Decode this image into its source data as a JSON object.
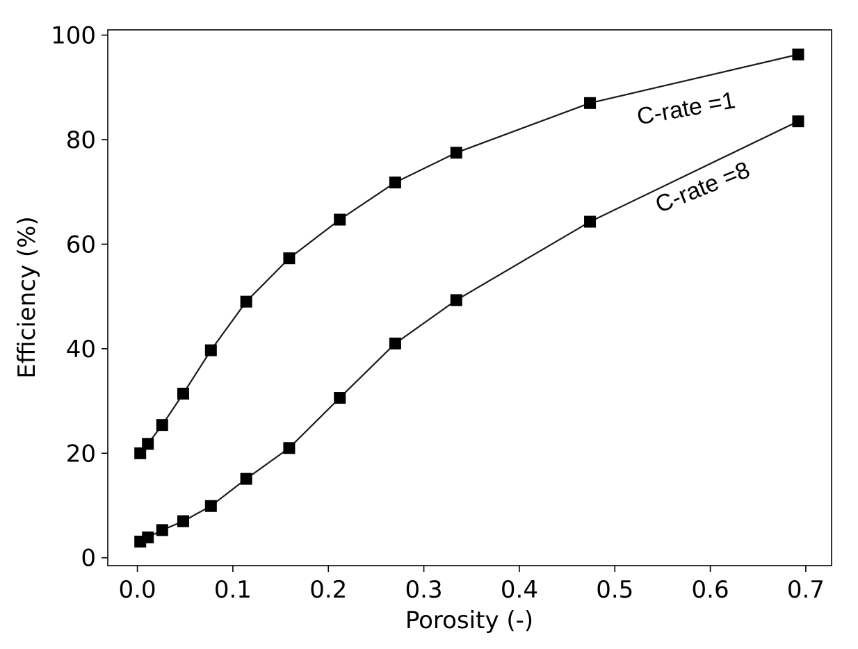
{
  "chart_data": {
    "type": "line",
    "title": "",
    "xlabel": "Porosity (-)",
    "ylabel": "Efficiency (%)",
    "xlim": [
      -0.031,
      0.727
    ],
    "ylim": [
      -1.5,
      101
    ],
    "xticks": [
      0.0,
      0.1,
      0.2,
      0.3,
      0.4,
      0.5,
      0.6,
      0.7
    ],
    "xtick_labels": [
      "0.0",
      "0.1",
      "0.2",
      "0.3",
      "0.4",
      "0.5",
      "0.6",
      "0.7"
    ],
    "yticks": [
      0,
      20,
      40,
      60,
      80,
      100
    ],
    "ytick_labels": [
      "0",
      "20",
      "40",
      "60",
      "80",
      "100"
    ],
    "grid": false,
    "legend": "none",
    "marker": "square",
    "line_color": "#1a1a1a",
    "marker_color": "#000000",
    "series": [
      {
        "x": [
          0.003,
          0.011,
          0.026,
          0.048,
          0.077,
          0.114,
          0.159,
          0.212,
          0.27,
          0.334,
          0.474,
          0.692
        ],
        "y": [
          20.0,
          21.8,
          25.4,
          31.4,
          39.7,
          49.0,
          57.3,
          64.7,
          71.8,
          77.5,
          87.0,
          96.3
        ]
      },
      {
        "x": [
          0.003,
          0.011,
          0.026,
          0.048,
          0.077,
          0.114,
          0.159,
          0.212,
          0.27,
          0.334,
          0.474,
          0.692
        ],
        "y": [
          3.1,
          3.9,
          5.3,
          7.0,
          9.9,
          15.1,
          21.0,
          30.6,
          41.0,
          49.3,
          64.3,
          83.5
        ]
      }
    ],
    "annotations": [
      {
        "text": "C-rate =1",
        "x": 0.576,
        "y": 84.5,
        "angle": -10
      },
      {
        "text": "C-rate =8",
        "x": 0.595,
        "y": 69.5,
        "angle": -22
      }
    ]
  }
}
